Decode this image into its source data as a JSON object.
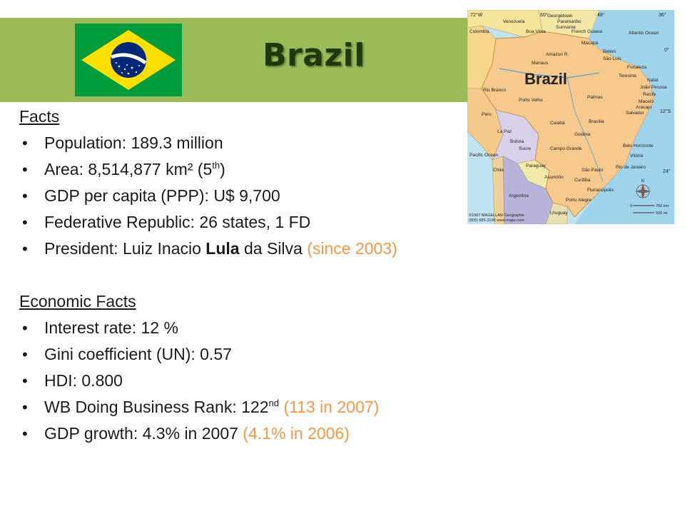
{
  "title": "Brazil",
  "facts": {
    "heading": "Facts",
    "population": "Population: 189.3 million",
    "area_prefix": "Area: 8,514,877 km² (5",
    "area_sup": "th",
    "area_suffix": ")",
    "gdp_ppp": "GDP per capita (PPP): U$ 9,700",
    "federative": "Federative Republic: 26 states, 1 FD",
    "president_prefix": "President: Luiz Inacio ",
    "president_bold": "Lula",
    "president_suffix": " da Silva ",
    "president_since": "(since 2003)"
  },
  "economic": {
    "heading": "Economic Facts",
    "interest": "Interest rate: 12 %",
    "gini": "Gini coefficient (UN): 0.57",
    "hdi": "HDI: 0.800",
    "wb_prefix": "WB Doing Business Rank: 122",
    "wb_sup": "nd",
    "wb_accent": " (113 in 2007)",
    "gdp_prefix": "GDP growth: 4.3% in 2007 ",
    "gdp_accent": "(4.1% in 2006)"
  },
  "flag": {
    "green": "#009b3a",
    "yellow": "#fedf00",
    "blue": "#002776",
    "motto": "ORDEM E PROGRESSO"
  },
  "map": {
    "country_label": "Brazil",
    "places": [
      "Colombia",
      "Venezuela",
      "Georgetown",
      "Paramaribo",
      "Boa Vista",
      "Suriname",
      "French Guiana",
      "Atlantic Ocean",
      "Amazon R.",
      "Macapá",
      "Belém",
      "São Luís",
      "Fortaleza",
      "Manaus",
      "Teresina",
      "Natal",
      "João Pessoa",
      "Recife",
      "Maceió",
      "Aracaju",
      "Salvador",
      "Peru",
      "Rio Branco",
      "Porto Velho",
      "Palmas",
      "Cuiabá",
      "Brasília",
      "La Paz",
      "Bolivia",
      "Goiânia",
      "Belo Horizonte",
      "Campo Grande",
      "Vitória",
      "Rio de Janeiro",
      "São Paulo",
      "Sucre",
      "Pacific Ocean",
      "Chile",
      "Paraguay",
      "Asunción",
      "Curitiba",
      "Florianópolis",
      "Porto Alegre",
      "Argentina",
      "Uruguay"
    ],
    "latitudes": [
      "0°",
      "12°S",
      "24°"
    ],
    "longitudes": [
      "72°W",
      "60°",
      "48°",
      "36°"
    ],
    "scale_km": "750 km",
    "scale_mi": "500 mi",
    "scale_zero": "0",
    "compass_n": "N",
    "copyright_1": "©1997 MAGELLAN Geographix",
    "copyright_2": "(805) 685-3100  www.maps.com"
  }
}
